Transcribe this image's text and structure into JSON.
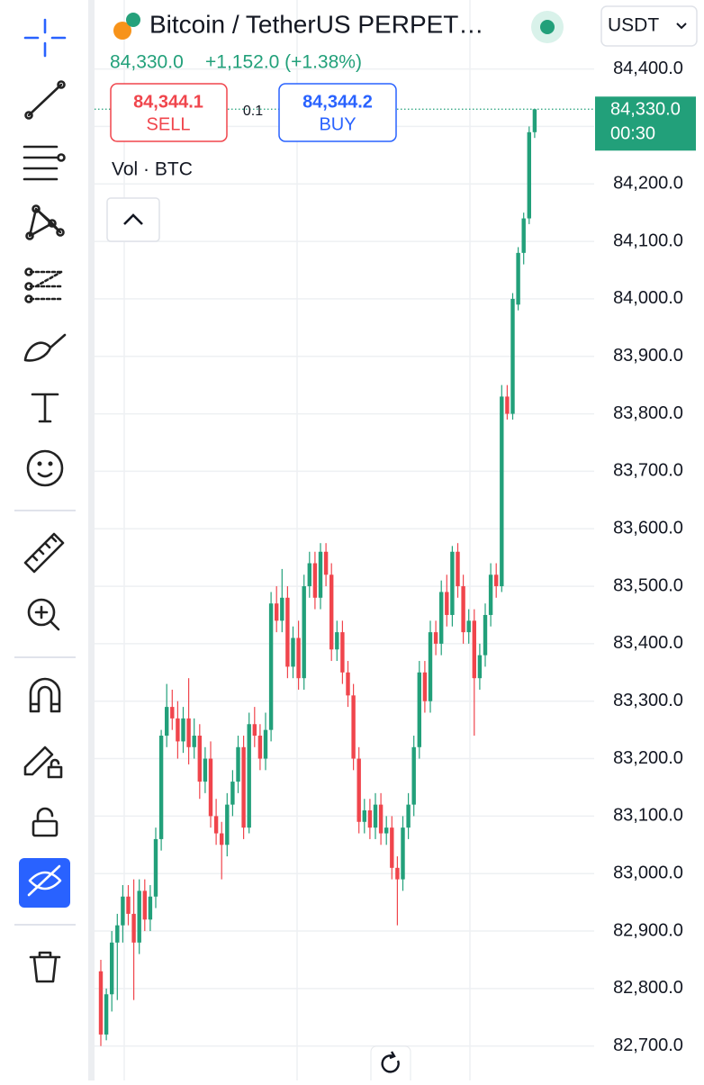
{
  "header": {
    "title": "Bitcoin / TetherUS PERPET…",
    "last_price": "84,330.0",
    "change": "+1,152.0 (+1.38%)",
    "currency": "USDT"
  },
  "trade": {
    "sell_price": "84,344.1",
    "sell_label": "SELL",
    "spread": "0.1",
    "buy_price": "84,344.2",
    "buy_label": "BUY"
  },
  "chart_data": {
    "type": "candlestick",
    "volume_label": "Vol · BTC",
    "up_color": "#22a07a",
    "down_color": "#f0454c",
    "grid": true,
    "ylim": [
      82640,
      84520
    ],
    "yticks": [
      {
        "value": 84400,
        "label": "84,400.0"
      },
      {
        "value": 84300,
        "label": "84,300.0"
      },
      {
        "value": 84200,
        "label": "84,200.0"
      },
      {
        "value": 84100,
        "label": "84,100.0"
      },
      {
        "value": 84000,
        "label": "84,000.0"
      },
      {
        "value": 83900,
        "label": "83,900.0"
      },
      {
        "value": 83800,
        "label": "83,800.0"
      },
      {
        "value": 83700,
        "label": "83,700.0"
      },
      {
        "value": 83600,
        "label": "83,600.0"
      },
      {
        "value": 83500,
        "label": "83,500.0"
      },
      {
        "value": 83400,
        "label": "83,400.0"
      },
      {
        "value": 83300,
        "label": "83,300.0"
      },
      {
        "value": 83200,
        "label": "83,200.0"
      },
      {
        "value": 83100,
        "label": "83,100.0"
      },
      {
        "value": 83000,
        "label": "83,000.0"
      },
      {
        "value": 82900,
        "label": "82,900.0"
      },
      {
        "value": 82800,
        "label": "82,800.0"
      },
      {
        "value": 82700,
        "label": "82,700.0"
      }
    ],
    "last_price": {
      "value": 84330,
      "label": "84,330.0"
    },
    "countdown": "00:30",
    "candles": [
      [
        82830,
        82850,
        82700,
        82720
      ],
      [
        82720,
        82800,
        82710,
        82790
      ],
      [
        82790,
        82900,
        82760,
        82880
      ],
      [
        82880,
        82930,
        82780,
        82910
      ],
      [
        82910,
        82980,
        82880,
        82960
      ],
      [
        82960,
        82980,
        82910,
        82930
      ],
      [
        82930,
        82990,
        82780,
        82880
      ],
      [
        82880,
        82990,
        82860,
        82970
      ],
      [
        82970,
        82990,
        82900,
        82920
      ],
      [
        82920,
        82980,
        82900,
        82960
      ],
      [
        82960,
        83080,
        82940,
        83060
      ],
      [
        83060,
        83250,
        83040,
        83240
      ],
      [
        83240,
        83330,
        83220,
        83290
      ],
      [
        83290,
        83320,
        83250,
        83270
      ],
      [
        83270,
        83300,
        83200,
        83230
      ],
      [
        83230,
        83290,
        83210,
        83270
      ],
      [
        83270,
        83340,
        83190,
        83220
      ],
      [
        83220,
        83270,
        83200,
        83240
      ],
      [
        83240,
        83260,
        83130,
        83160
      ],
      [
        83160,
        83220,
        83140,
        83200
      ],
      [
        83200,
        83230,
        83080,
        83100
      ],
      [
        83100,
        83130,
        83050,
        83070
      ],
      [
        83070,
        83090,
        82990,
        83050
      ],
      [
        83050,
        83140,
        83030,
        83120
      ],
      [
        83120,
        83180,
        83100,
        83160
      ],
      [
        83160,
        83240,
        83140,
        83220
      ],
      [
        83220,
        83240,
        83060,
        83080
      ],
      [
        83080,
        83280,
        83070,
        83260
      ],
      [
        83260,
        83290,
        83220,
        83240
      ],
      [
        83240,
        83260,
        83180,
        83200
      ],
      [
        83200,
        83280,
        83180,
        83250
      ],
      [
        83250,
        83490,
        83230,
        83470
      ],
      [
        83470,
        83500,
        83420,
        83440
      ],
      [
        83440,
        83530,
        83420,
        83480
      ],
      [
        83480,
        83500,
        83340,
        83360
      ],
      [
        83360,
        83430,
        83340,
        83410
      ],
      [
        83410,
        83440,
        83320,
        83340
      ],
      [
        83340,
        83520,
        83320,
        83500
      ],
      [
        83500,
        83560,
        83480,
        83540
      ],
      [
        83540,
        83560,
        83460,
        83480
      ],
      [
        83480,
        83575,
        83460,
        83560
      ],
      [
        83560,
        83575,
        83500,
        83520
      ],
      [
        83520,
        83540,
        83370,
        83390
      ],
      [
        83390,
        83440,
        83370,
        83420
      ],
      [
        83420,
        83440,
        83330,
        83350
      ],
      [
        83350,
        83370,
        83290,
        83310
      ],
      [
        83310,
        83330,
        83180,
        83200
      ],
      [
        83200,
        83220,
        83070,
        83090
      ],
      [
        83090,
        83130,
        83070,
        83110
      ],
      [
        83110,
        83130,
        83060,
        83080
      ],
      [
        83080,
        83140,
        83060,
        83120
      ],
      [
        83120,
        83140,
        83050,
        83070
      ],
      [
        83070,
        83100,
        83050,
        83080
      ],
      [
        83080,
        83100,
        82990,
        83010
      ],
      [
        83010,
        83030,
        82910,
        82990
      ],
      [
        82990,
        83100,
        82970,
        83080
      ],
      [
        83080,
        83140,
        83060,
        83120
      ],
      [
        83120,
        83240,
        83100,
        83220
      ],
      [
        83220,
        83370,
        83200,
        83350
      ],
      [
        83350,
        83370,
        83280,
        83300
      ],
      [
        83300,
        83440,
        83280,
        83420
      ],
      [
        83420,
        83440,
        83380,
        83400
      ],
      [
        83400,
        83510,
        83380,
        83490
      ],
      [
        83490,
        83520,
        83430,
        83450
      ],
      [
        83450,
        83570,
        83430,
        83560
      ],
      [
        83560,
        83575,
        83480,
        83500
      ],
      [
        83500,
        83520,
        83400,
        83420
      ],
      [
        83420,
        83460,
        83400,
        83440
      ],
      [
        83440,
        83460,
        83240,
        83340
      ],
      [
        83340,
        83400,
        83320,
        83380
      ],
      [
        83380,
        83470,
        83360,
        83450
      ],
      [
        83450,
        83540,
        83430,
        83520
      ],
      [
        83520,
        83540,
        83480,
        83500
      ],
      [
        83500,
        83850,
        83490,
        83830
      ],
      [
        83830,
        83850,
        83790,
        83800
      ],
      [
        83800,
        84010,
        83790,
        84000
      ],
      [
        83990,
        84090,
        83980,
        84080
      ],
      [
        84080,
        84150,
        84060,
        84140
      ],
      [
        84140,
        84300,
        84130,
        84290
      ],
      [
        84290,
        84330,
        84280,
        84330
      ]
    ]
  }
}
